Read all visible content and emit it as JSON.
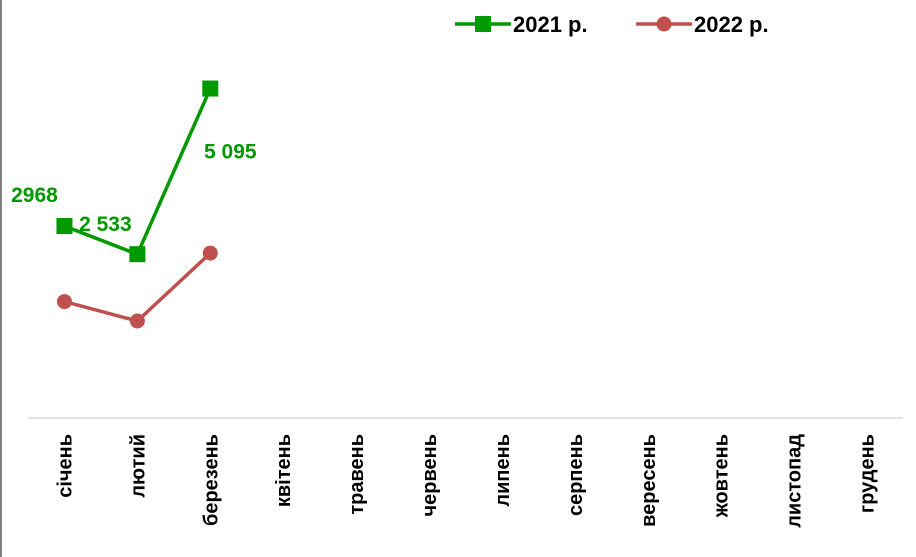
{
  "chart_data": {
    "type": "line",
    "title": "",
    "xlabel": "",
    "ylabel": "",
    "categories": [
      "січень",
      "лютий",
      "березень",
      "квітень",
      "травень",
      "червень",
      "липень",
      "серпень",
      "вересень",
      "жовтень",
      "листопад",
      "грудень"
    ],
    "ylim": [
      0,
      6000
    ],
    "grid": false,
    "legend_position": "top-right",
    "series": [
      {
        "name": "2021 р.",
        "color": "#009900",
        "marker": "square",
        "values": [
          2968,
          2533,
          5095,
          null,
          null,
          null,
          null,
          null,
          null,
          null,
          null,
          null
        ],
        "labels": [
          "2968",
          "2 533",
          "5 095",
          "",
          "",
          "",
          "",
          "",
          "",
          "",
          "",
          ""
        ]
      },
      {
        "name": "2022 р.",
        "color": "#c0504d",
        "marker": "circle",
        "values": [
          1800,
          1500,
          2550,
          null,
          null,
          null,
          null,
          null,
          null,
          null,
          null,
          null
        ],
        "labels": [
          "",
          "",
          "",
          "",
          "",
          "",
          "",
          "",
          "",
          "",
          "",
          ""
        ]
      }
    ]
  }
}
